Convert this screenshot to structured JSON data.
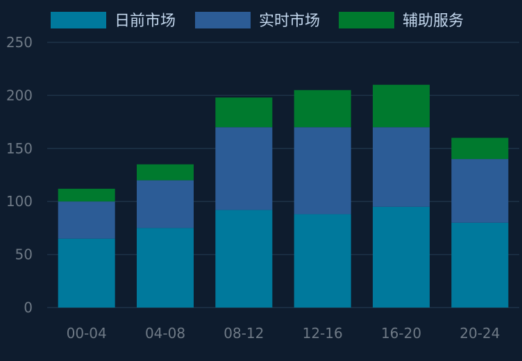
{
  "chart_data": {
    "type": "bar",
    "stacked": true,
    "categories": [
      "00-04",
      "04-08",
      "08-12",
      "12-16",
      "16-20",
      "20-24"
    ],
    "series": [
      {
        "name": "日前市场",
        "values": [
          65,
          75,
          92,
          88,
          95,
          80
        ],
        "color": "#00799c"
      },
      {
        "name": "实时市场",
        "values": [
          35,
          45,
          78,
          82,
          75,
          60
        ],
        "color": "#2c5c96"
      },
      {
        "name": "辅助服务",
        "values": [
          12,
          15,
          28,
          35,
          40,
          20
        ],
        "color": "#007a2e"
      }
    ],
    "ylim": [
      0,
      250
    ],
    "yticks": [
      0,
      50,
      100,
      150,
      200,
      250
    ],
    "grid": true,
    "legend": "top"
  },
  "colors": {
    "background": "#0e1c2e",
    "gridline": "#1e3348",
    "tick_text": "#6f7a86",
    "legend_text": "#c4d8ee"
  }
}
